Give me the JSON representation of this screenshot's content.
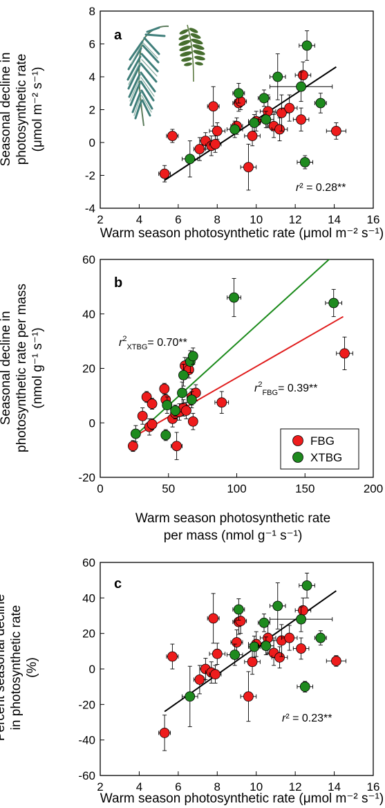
{
  "colors": {
    "FBG": "#ee1c1c",
    "XTBG": "#1e8a1e",
    "fit_black": "#000000",
    "fit_FBG": "#e01b1b",
    "fit_XTBG": "#1a8a1a"
  },
  "legend": [
    {
      "label": "FBG",
      "color": "#ee1c1c"
    },
    {
      "label": "XTBG",
      "color": "#1e8a1e"
    }
  ],
  "decorations": [
    "palm-leaf-illustration",
    "pinnate-leaf-illustration"
  ],
  "chart_data": [
    {
      "panel": "a",
      "type": "scatter",
      "xlabel": "Warm season photosynthetic rate (μmol m⁻² s⁻¹)",
      "ylabel_lines": [
        "Seasonal decline in",
        "photosynthetic rate",
        "(μmol m⁻² s⁻¹)"
      ],
      "xlim": [
        2,
        16
      ],
      "ylim": [
        -4,
        8
      ],
      "xticks": [
        2,
        4,
        6,
        8,
        10,
        12,
        14,
        16
      ],
      "yticks": [
        -4,
        -2,
        0,
        2,
        4,
        6,
        8
      ],
      "annotation": "r² = 0.28**",
      "fits": [
        {
          "group": "all",
          "x": [
            5.3,
            14.1
          ],
          "y": [
            -2.3,
            4.6
          ]
        }
      ],
      "series": [
        {
          "group": "FBG",
          "points": [
            {
              "x": 5.3,
              "y": -1.9,
              "xerr": 0.3,
              "yerr": 0.5
            },
            {
              "x": 5.7,
              "y": 0.4,
              "xerr": 0.3,
              "yerr": 0.4
            },
            {
              "x": 7.1,
              "y": -0.4,
              "xerr": 0.3,
              "yerr": 0.7
            },
            {
              "x": 7.4,
              "y": 0.1,
              "xerr": 0.3,
              "yerr": 0.5
            },
            {
              "x": 7.7,
              "y": -0.2,
              "xerr": 0.3,
              "yerr": 0.6
            },
            {
              "x": 7.8,
              "y": 2.2,
              "xerr": 0.3,
              "yerr": 1.2
            },
            {
              "x": 7.9,
              "y": -0.1,
              "xerr": 0.3,
              "yerr": 0.5
            },
            {
              "x": 8.0,
              "y": 0.7,
              "xerr": 0.4,
              "yerr": 0.5
            },
            {
              "x": 9.0,
              "y": 1.0,
              "xerr": 0.3,
              "yerr": 0.5
            },
            {
              "x": 9.1,
              "y": 2.4,
              "xerr": 0.3,
              "yerr": 0.5
            },
            {
              "x": 9.2,
              "y": 2.5,
              "xerr": 0.3,
              "yerr": 0.5
            },
            {
              "x": 9.6,
              "y": -1.5,
              "xerr": 0.4,
              "yerr": 1.4
            },
            {
              "x": 9.8,
              "y": 0.4,
              "xerr": 0.4,
              "yerr": 0.6
            },
            {
              "x": 10.0,
              "y": 1.3,
              "xerr": 0.4,
              "yerr": 0.6
            },
            {
              "x": 10.6,
              "y": 1.9,
              "xerr": 0.4,
              "yerr": 1.0
            },
            {
              "x": 10.9,
              "y": 1.0,
              "xerr": 0.4,
              "yerr": 0.7
            },
            {
              "x": 11.2,
              "y": 0.8,
              "xerr": 0.4,
              "yerr": 0.7
            },
            {
              "x": 11.3,
              "y": 1.8,
              "xerr": 0.4,
              "yerr": 1.1
            },
            {
              "x": 11.7,
              "y": 2.1,
              "xerr": 0.4,
              "yerr": 0.8
            },
            {
              "x": 12.3,
              "y": 1.4,
              "xerr": 0.4,
              "yerr": 0.7
            },
            {
              "x": 12.4,
              "y": 4.1,
              "xerr": 0.4,
              "yerr": 0.8
            },
            {
              "x": 14.1,
              "y": 0.7,
              "xerr": 0.5,
              "yerr": 0.5
            }
          ]
        },
        {
          "group": "XTBG",
          "points": [
            {
              "x": 6.6,
              "y": -1.0,
              "xerr": 0.4,
              "yerr": 1.1
            },
            {
              "x": 8.9,
              "y": 0.8,
              "xerr": 0.4,
              "yerr": 0.5
            },
            {
              "x": 9.1,
              "y": 3.0,
              "xerr": 0.3,
              "yerr": 0.6
            },
            {
              "x": 9.9,
              "y": 1.2,
              "xerr": 0.3,
              "yerr": 0.5
            },
            {
              "x": 10.4,
              "y": 2.7,
              "xerr": 0.3,
              "yerr": 0.5
            },
            {
              "x": 10.5,
              "y": 1.4,
              "xerr": 0.4,
              "yerr": 0.5
            },
            {
              "x": 11.1,
              "y": 4.0,
              "xerr": 0.4,
              "yerr": 1.4
            },
            {
              "x": 12.3,
              "y": 3.4,
              "xerr": 1.6,
              "yerr": 0.9
            },
            {
              "x": 12.5,
              "y": -1.2,
              "xerr": 0.4,
              "yerr": 0.4
            },
            {
              "x": 12.6,
              "y": 5.9,
              "xerr": 0.4,
              "yerr": 0.9
            },
            {
              "x": 13.3,
              "y": 2.4,
              "xerr": 0.3,
              "yerr": 0.6
            }
          ]
        }
      ]
    },
    {
      "panel": "b",
      "type": "scatter",
      "xlabel_lines": [
        "Warm season photosynthetic rate",
        "per mass (nmol g⁻¹ s⁻¹)"
      ],
      "ylabel_lines": [
        "Seasonal decline in",
        "photosynthetic rate per mass",
        "(nmol g⁻¹ s⁻¹)"
      ],
      "xlim": [
        0,
        200
      ],
      "ylim": [
        -20,
        60
      ],
      "xticks": [
        0,
        50,
        100,
        150,
        200
      ],
      "yticks": [
        -20,
        0,
        20,
        40,
        60
      ],
      "annotations": [
        "r²XTBG= 0.70**",
        "r²FBG= 0.39**"
      ],
      "fits": [
        {
          "group": "FBG",
          "x": [
            25,
            178
          ],
          "y": [
            -5,
            39
          ]
        },
        {
          "group": "XTBG",
          "x": [
            25,
            172
          ],
          "y": [
            -5,
            62
          ]
        }
      ],
      "series": [
        {
          "group": "FBG",
          "points": [
            {
              "x": 24,
              "y": -8.5,
              "xerr": 3,
              "yerr": 2
            },
            {
              "x": 31,
              "y": 2.5,
              "xerr": 3,
              "yerr": 3
            },
            {
              "x": 34,
              "y": 9.5,
              "xerr": 3,
              "yerr": 2
            },
            {
              "x": 36,
              "y": -1.5,
              "xerr": 3,
              "yerr": 3
            },
            {
              "x": 38,
              "y": -0.5,
              "xerr": 3,
              "yerr": 2
            },
            {
              "x": 38,
              "y": 7,
              "xerr": 3,
              "yerr": 2
            },
            {
              "x": 47,
              "y": 12.5,
              "xerr": 3,
              "yerr": 2
            },
            {
              "x": 48,
              "y": 8.5,
              "xerr": 3,
              "yerr": 2
            },
            {
              "x": 53,
              "y": 1.5,
              "xerr": 3,
              "yerr": 3
            },
            {
              "x": 55,
              "y": 3.5,
              "xerr": 3,
              "yerr": 2
            },
            {
              "x": 56,
              "y": -8.5,
              "xerr": 4,
              "yerr": 5
            },
            {
              "x": 58,
              "y": 4,
              "xerr": 3,
              "yerr": 3
            },
            {
              "x": 61,
              "y": 5.5,
              "xerr": 3,
              "yerr": 3
            },
            {
              "x": 62,
              "y": 21,
              "xerr": 3,
              "yerr": 3
            },
            {
              "x": 63,
              "y": 4.5,
              "xerr": 3,
              "yerr": 3
            },
            {
              "x": 65,
              "y": 19.5,
              "xerr": 3,
              "yerr": 3
            },
            {
              "x": 67,
              "y": 9.5,
              "xerr": 3,
              "yerr": 3
            },
            {
              "x": 68,
              "y": 0.5,
              "xerr": 3,
              "yerr": 3
            },
            {
              "x": 70,
              "y": 11,
              "xerr": 3,
              "yerr": 3
            },
            {
              "x": 89,
              "y": 7.5,
              "xerr": 5,
              "yerr": 4
            },
            {
              "x": 179,
              "y": 25.5,
              "xerr": 6,
              "yerr": 6
            }
          ]
        },
        {
          "group": "XTBG",
          "points": [
            {
              "x": 26,
              "y": -4,
              "xerr": 3,
              "yerr": 3
            },
            {
              "x": 48,
              "y": -4.5,
              "xerr": 3,
              "yerr": 2
            },
            {
              "x": 49,
              "y": 6.5,
              "xerr": 3,
              "yerr": 3
            },
            {
              "x": 55,
              "y": 4.5,
              "xerr": 3,
              "yerr": 2
            },
            {
              "x": 60,
              "y": 11,
              "xerr": 3,
              "yerr": 4
            },
            {
              "x": 61,
              "y": 17.5,
              "xerr": 3,
              "yerr": 4
            },
            {
              "x": 66,
              "y": 22.5,
              "xerr": 3,
              "yerr": 4
            },
            {
              "x": 67,
              "y": 8.5,
              "xerr": 3,
              "yerr": 3
            },
            {
              "x": 68,
              "y": 24.5,
              "xerr": 3,
              "yerr": 3
            },
            {
              "x": 98,
              "y": 46,
              "xerr": 5,
              "yerr": 7
            },
            {
              "x": 171,
              "y": 44,
              "xerr": 6,
              "yerr": 5
            }
          ]
        }
      ]
    },
    {
      "panel": "c",
      "type": "scatter",
      "xlabel": "Warm season photosynthetic rate (μmol m⁻² s⁻¹)",
      "ylabel_lines": [
        "Percent seasonal decline",
        "in photosynthetic rate",
        "(%)"
      ],
      "xlim": [
        2,
        16
      ],
      "ylim": [
        -60,
        60
      ],
      "xticks": [
        2,
        4,
        6,
        8,
        10,
        12,
        14,
        16
      ],
      "yticks": [
        -60,
        -40,
        -20,
        0,
        20,
        40,
        60
      ],
      "annotation": "r² = 0.23**",
      "fits": [
        {
          "group": "all",
          "x": [
            5.3,
            14.1
          ],
          "y": [
            -24,
            44
          ]
        }
      ],
      "series": [
        {
          "group": "FBG",
          "points": [
            {
              "x": 5.3,
              "y": -36,
              "xerr": 0.3,
              "yerr": 10
            },
            {
              "x": 5.7,
              "y": 7,
              "xerr": 0.3,
              "yerr": 7
            },
            {
              "x": 7.1,
              "y": -6,
              "xerr": 0.3,
              "yerr": 8
            },
            {
              "x": 7.4,
              "y": 0,
              "xerr": 0.3,
              "yerr": 6
            },
            {
              "x": 7.7,
              "y": -2,
              "xerr": 0.3,
              "yerr": 6
            },
            {
              "x": 7.8,
              "y": 28.5,
              "xerr": 0.3,
              "yerr": 14
            },
            {
              "x": 7.9,
              "y": -3,
              "xerr": 0.3,
              "yerr": 5
            },
            {
              "x": 8.0,
              "y": 8.5,
              "xerr": 0.4,
              "yerr": 6
            },
            {
              "x": 9.0,
              "y": 15,
              "xerr": 0.3,
              "yerr": 7
            },
            {
              "x": 9.1,
              "y": 26.5,
              "xerr": 0.3,
              "yerr": 7
            },
            {
              "x": 9.2,
              "y": 27,
              "xerr": 0.3,
              "yerr": 7
            },
            {
              "x": 9.6,
              "y": -15.5,
              "xerr": 0.4,
              "yerr": 14
            },
            {
              "x": 9.8,
              "y": 4,
              "xerr": 0.4,
              "yerr": 7
            },
            {
              "x": 10.0,
              "y": 14,
              "xerr": 0.4,
              "yerr": 7
            },
            {
              "x": 10.6,
              "y": 17.5,
              "xerr": 0.4,
              "yerr": 9
            },
            {
              "x": 10.9,
              "y": 9,
              "xerr": 0.4,
              "yerr": 7
            },
            {
              "x": 11.2,
              "y": 6.5,
              "xerr": 0.4,
              "yerr": 6
            },
            {
              "x": 11.3,
              "y": 16,
              "xerr": 0.4,
              "yerr": 9
            },
            {
              "x": 11.7,
              "y": 17.5,
              "xerr": 0.4,
              "yerr": 7
            },
            {
              "x": 12.3,
              "y": 11.5,
              "xerr": 0.4,
              "yerr": 6
            },
            {
              "x": 12.4,
              "y": 33,
              "xerr": 0.4,
              "yerr": 7
            },
            {
              "x": 14.1,
              "y": 4.5,
              "xerr": 0.5,
              "yerr": 3
            }
          ]
        },
        {
          "group": "XTBG",
          "points": [
            {
              "x": 6.6,
              "y": -15.5,
              "xerr": 0.4,
              "yerr": 17
            },
            {
              "x": 8.9,
              "y": 8,
              "xerr": 0.4,
              "yerr": 6
            },
            {
              "x": 9.1,
              "y": 33.5,
              "xerr": 0.3,
              "yerr": 6
            },
            {
              "x": 9.9,
              "y": 12.5,
              "xerr": 0.3,
              "yerr": 6
            },
            {
              "x": 10.4,
              "y": 26,
              "xerr": 0.3,
              "yerr": 5
            },
            {
              "x": 10.5,
              "y": 13,
              "xerr": 0.4,
              "yerr": 5
            },
            {
              "x": 11.1,
              "y": 35.5,
              "xerr": 0.4,
              "yerr": 13
            },
            {
              "x": 12.3,
              "y": 28,
              "xerr": 1.6,
              "yerr": 7
            },
            {
              "x": 12.5,
              "y": -10,
              "xerr": 0.4,
              "yerr": 3
            },
            {
              "x": 12.6,
              "y": 47,
              "xerr": 0.4,
              "yerr": 7
            },
            {
              "x": 13.3,
              "y": 17.5,
              "xerr": 0.3,
              "yerr": 4
            }
          ]
        }
      ]
    }
  ]
}
